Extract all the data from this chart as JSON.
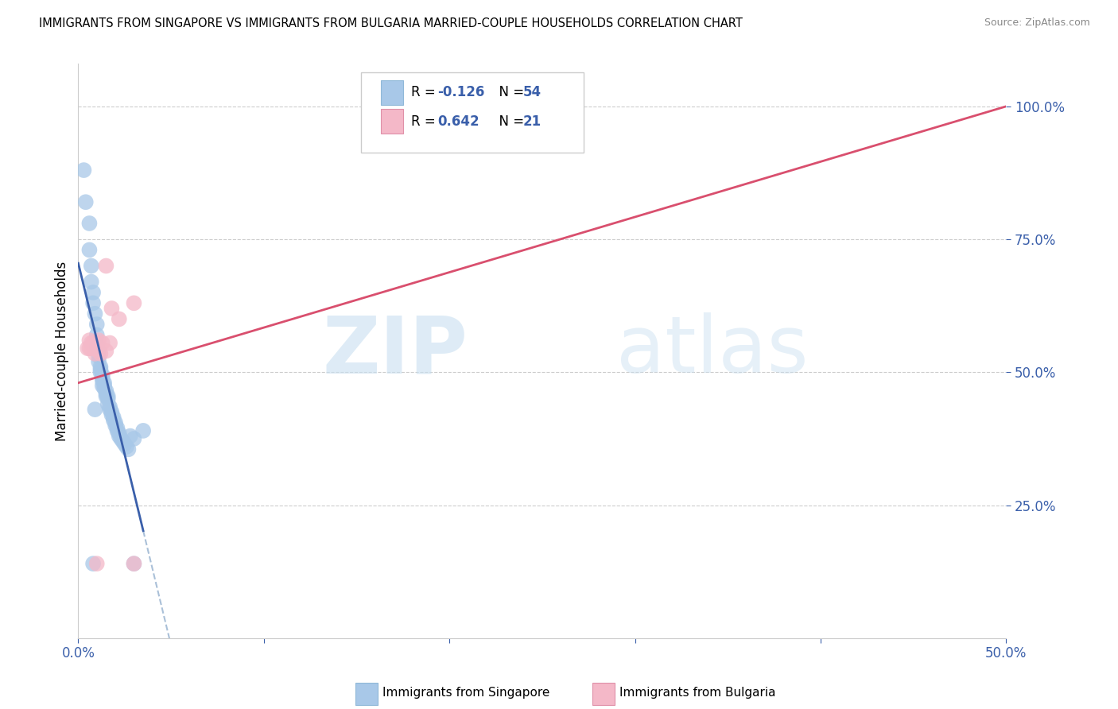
{
  "title": "IMMIGRANTS FROM SINGAPORE VS IMMIGRANTS FROM BULGARIA MARRIED-COUPLE HOUSEHOLDS CORRELATION CHART",
  "source": "Source: ZipAtlas.com",
  "ylabel": "Married-couple Households",
  "xlim": [
    0.0,
    0.5
  ],
  "ylim": [
    0.0,
    1.08
  ],
  "singapore_color": "#a8c8e8",
  "bulgaria_color": "#f4b8c8",
  "singapore_line_color": "#3a5faa",
  "bulgaria_line_color": "#d94f6e",
  "dashed_line_color": "#aac0d8",
  "watermark_zip": "ZIP",
  "watermark_atlas": "atlas",
  "singapore_R": -0.126,
  "singapore_N": 54,
  "bulgaria_R": 0.642,
  "bulgaria_N": 21,
  "singapore_points": [
    [
      0.003,
      0.88
    ],
    [
      0.004,
      0.82
    ],
    [
      0.006,
      0.78
    ],
    [
      0.006,
      0.73
    ],
    [
      0.007,
      0.7
    ],
    [
      0.007,
      0.67
    ],
    [
      0.008,
      0.65
    ],
    [
      0.008,
      0.63
    ],
    [
      0.009,
      0.61
    ],
    [
      0.01,
      0.59
    ],
    [
      0.01,
      0.57
    ],
    [
      0.01,
      0.55
    ],
    [
      0.011,
      0.54
    ],
    [
      0.011,
      0.53
    ],
    [
      0.011,
      0.52
    ],
    [
      0.012,
      0.51
    ],
    [
      0.012,
      0.505
    ],
    [
      0.012,
      0.5
    ],
    [
      0.013,
      0.495
    ],
    [
      0.013,
      0.49
    ],
    [
      0.013,
      0.485
    ],
    [
      0.014,
      0.48
    ],
    [
      0.014,
      0.475
    ],
    [
      0.014,
      0.47
    ],
    [
      0.015,
      0.465
    ],
    [
      0.015,
      0.46
    ],
    [
      0.015,
      0.455
    ],
    [
      0.016,
      0.45
    ],
    [
      0.016,
      0.44
    ],
    [
      0.017,
      0.435
    ],
    [
      0.017,
      0.43
    ],
    [
      0.018,
      0.425
    ],
    [
      0.018,
      0.42
    ],
    [
      0.019,
      0.415
    ],
    [
      0.019,
      0.41
    ],
    [
      0.02,
      0.405
    ],
    [
      0.02,
      0.4
    ],
    [
      0.021,
      0.395
    ],
    [
      0.021,
      0.39
    ],
    [
      0.022,
      0.385
    ],
    [
      0.022,
      0.38
    ],
    [
      0.023,
      0.375
    ],
    [
      0.024,
      0.37
    ],
    [
      0.025,
      0.365
    ],
    [
      0.026,
      0.36
    ],
    [
      0.027,
      0.355
    ],
    [
      0.028,
      0.38
    ],
    [
      0.03,
      0.375
    ],
    [
      0.035,
      0.39
    ],
    [
      0.009,
      0.43
    ],
    [
      0.013,
      0.475
    ],
    [
      0.016,
      0.455
    ],
    [
      0.008,
      0.14
    ],
    [
      0.03,
      0.14
    ]
  ],
  "bulgaria_points": [
    [
      0.005,
      0.545
    ],
    [
      0.006,
      0.545
    ],
    [
      0.006,
      0.56
    ],
    [
      0.007,
      0.555
    ],
    [
      0.007,
      0.545
    ],
    [
      0.008,
      0.555
    ],
    [
      0.009,
      0.545
    ],
    [
      0.009,
      0.535
    ],
    [
      0.01,
      0.555
    ],
    [
      0.011,
      0.54
    ],
    [
      0.011,
      0.56
    ],
    [
      0.012,
      0.535
    ],
    [
      0.013,
      0.555
    ],
    [
      0.015,
      0.54
    ],
    [
      0.017,
      0.555
    ],
    [
      0.018,
      0.62
    ],
    [
      0.022,
      0.6
    ],
    [
      0.03,
      0.63
    ],
    [
      0.015,
      0.7
    ],
    [
      0.01,
      0.14
    ],
    [
      0.03,
      0.14
    ]
  ]
}
